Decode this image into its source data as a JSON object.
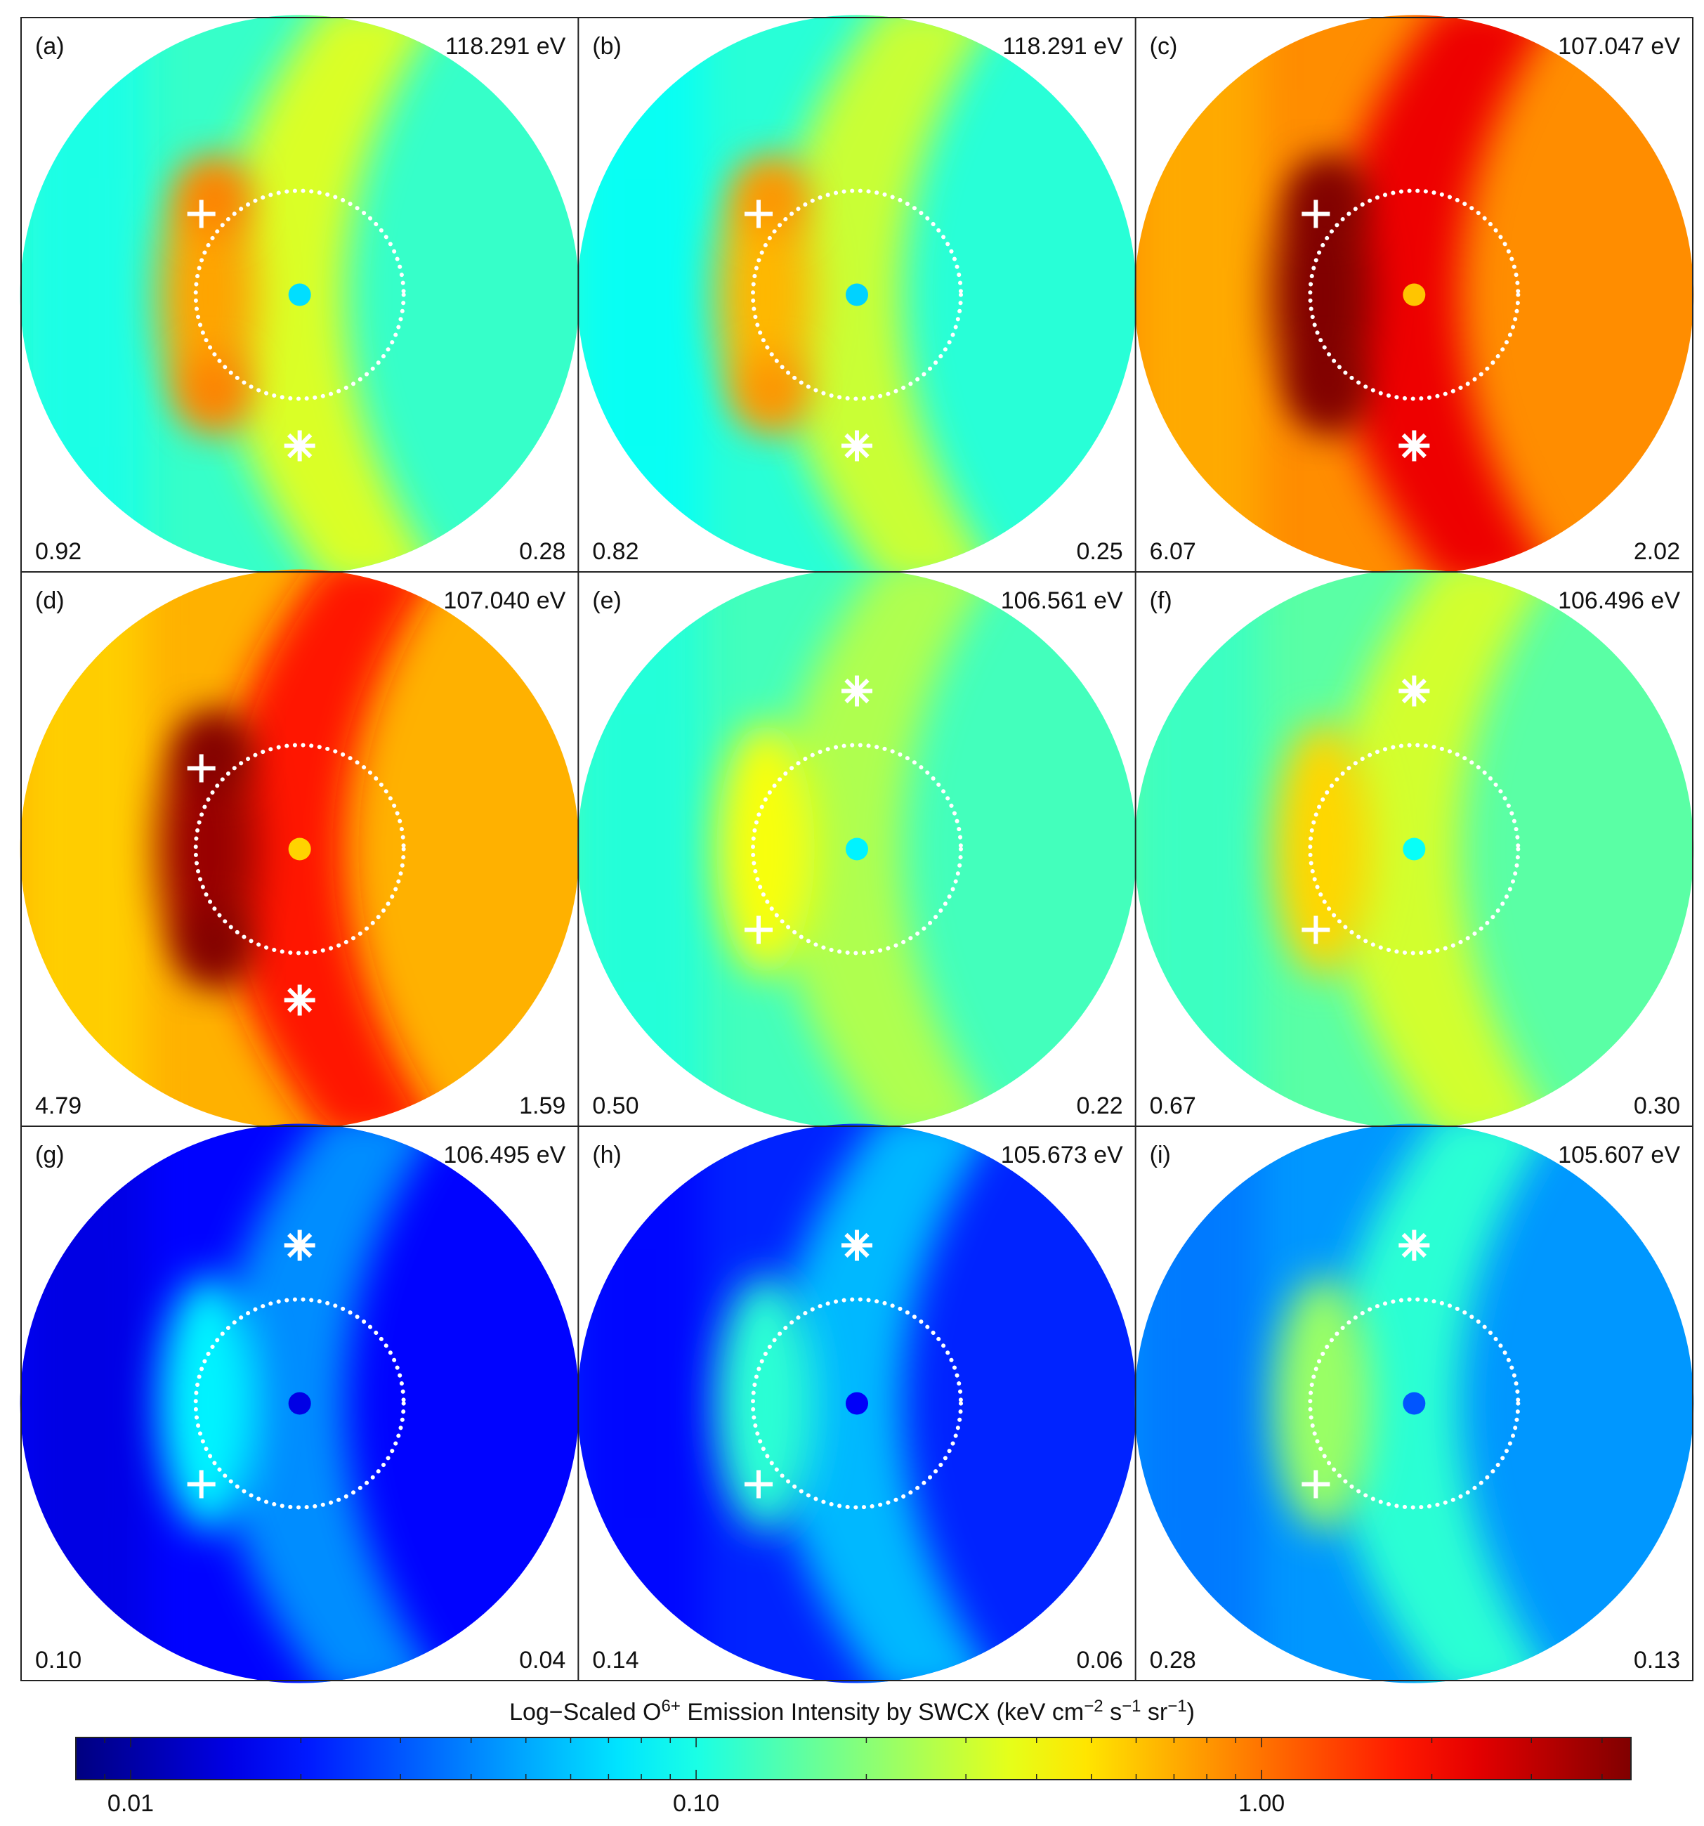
{
  "chart_data": {
    "type": "heatmap",
    "panels": [
      {
        "label": "(a)",
        "energy": "118.291 eV",
        "left_value": "0.92",
        "right_value": "0.28",
        "base": 0.12,
        "nose_peak": 0.92,
        "center": 0.07,
        "plus_at": "upper-left",
        "star_at": "below"
      },
      {
        "label": "(b)",
        "energy": "118.291 eV",
        "left_value": "0.82",
        "right_value": "0.25",
        "base": 0.11,
        "nose_peak": 0.82,
        "center": 0.065,
        "plus_at": "upper-left",
        "star_at": "below"
      },
      {
        "label": "(c)",
        "energy": "107.047 eV",
        "left_value": "6.07",
        "right_value": "2.02",
        "base": 0.85,
        "nose_peak": 6.07,
        "center": 0.6,
        "plus_at": "upper-left",
        "star_at": "below"
      },
      {
        "label": "(d)",
        "energy": "107.040 eV",
        "left_value": "4.79",
        "right_value": "1.59",
        "base": 0.68,
        "nose_peak": 4.79,
        "center": 0.55,
        "plus_at": "upper-left",
        "star_at": "below"
      },
      {
        "label": "(e)",
        "energy": "106.561 eV",
        "left_value": "0.50",
        "right_value": "0.22",
        "base": 0.13,
        "nose_peak": 0.5,
        "center": 0.08,
        "plus_at": "lower-left",
        "star_at": "above"
      },
      {
        "label": "(f)",
        "energy": "106.496 eV",
        "left_value": "0.67",
        "right_value": "0.30",
        "base": 0.15,
        "nose_peak": 0.67,
        "center": 0.09,
        "plus_at": "lower-left",
        "star_at": "above"
      },
      {
        "label": "(g)",
        "energy": "106.495 eV",
        "left_value": "0.10",
        "right_value": "0.04",
        "base": 0.018,
        "nose_peak": 0.1,
        "center": 0.015,
        "plus_at": "lower-left",
        "star_at": "above"
      },
      {
        "label": "(h)",
        "energy": "105.673 eV",
        "left_value": "0.14",
        "right_value": "0.06",
        "base": 0.022,
        "nose_peak": 0.14,
        "center": 0.017,
        "plus_at": "lower-left",
        "star_at": "above"
      },
      {
        "label": "(i)",
        "energy": "105.607 eV",
        "left_value": "0.28",
        "right_value": "0.13",
        "base": 0.045,
        "nose_peak": 0.28,
        "center": 0.03,
        "plus_at": "lower-left",
        "star_at": "above"
      }
    ],
    "colorbar": {
      "title_prefix": "Log−Scaled O",
      "title_sup": "6+",
      "title_suffix": " Emission Intensity by SWCX (keV cm",
      "unit_sup1": "−2",
      "unit_mid1": " s",
      "unit_sup2": "−1",
      "unit_mid2": " sr",
      "unit_sup3": "−1",
      "unit_end": ")",
      "scale": "log",
      "range": [
        0.008,
        4.5
      ],
      "ticks": [
        {
          "value": 0.01,
          "label": "0.01"
        },
        {
          "value": 0.1,
          "label": "0.10"
        },
        {
          "value": 1.0,
          "label": "1.00"
        }
      ],
      "colormap": "jet"
    }
  }
}
